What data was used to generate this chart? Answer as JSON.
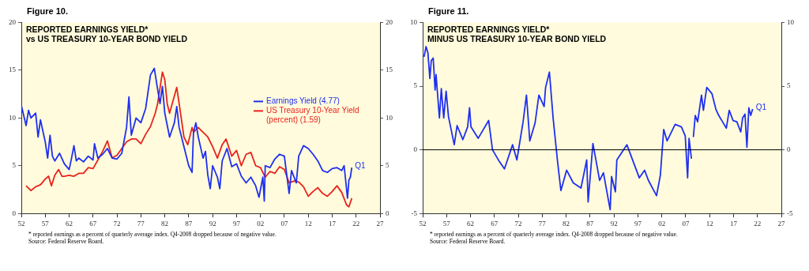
{
  "chart_data": [
    {
      "type": "line",
      "subtitle": "Figure 10.",
      "title": "REPORTED EARNINGS YIELD*\nvs US TREASURY 10-YEAR BOND YIELD",
      "xlim": [
        1952,
        2027
      ],
      "xticks": [
        {
          "value": 1952,
          "label": "52"
        },
        {
          "value": 1957,
          "label": "57"
        },
        {
          "value": 1962,
          "label": "62"
        },
        {
          "value": 1967,
          "label": "67"
        },
        {
          "value": 1972,
          "label": "72"
        },
        {
          "value": 1977,
          "label": "77"
        },
        {
          "value": 1982,
          "label": "82"
        },
        {
          "value": 1987,
          "label": "87"
        },
        {
          "value": 1992,
          "label": "92"
        },
        {
          "value": 1997,
          "label": "97"
        },
        {
          "value": 2002,
          "label": "02"
        },
        {
          "value": 2007,
          "label": "07"
        },
        {
          "value": 2012,
          "label": "12"
        },
        {
          "value": 2017,
          "label": "17"
        },
        {
          "value": 2022,
          "label": "22"
        },
        {
          "value": 2027,
          "label": "27"
        }
      ],
      "ylim": [
        0,
        20
      ],
      "yticks": [
        0,
        5,
        10,
        15,
        20
      ],
      "y2lim": [
        0,
        20
      ],
      "y2ticks": [
        0,
        5,
        10,
        15,
        20
      ],
      "legend": "right",
      "series": [
        {
          "name": "Earnings Yield (4.77)",
          "color": "#1f2ff0",
          "x": [
            1952,
            1953,
            1953.5,
            1954,
            1955,
            1955.5,
            1956,
            1957,
            1957.5,
            1958,
            1958.5,
            1959,
            1960,
            1961,
            1962,
            1962.5,
            1963,
            1963.5,
            1964,
            1965,
            1966,
            1967,
            1967.3,
            1968,
            1969,
            1970,
            1971,
            1972,
            1973,
            1974,
            1974.5,
            1975,
            1976,
            1977,
            1978,
            1979,
            1979.8,
            1980.5,
            1981,
            1981.5,
            1982,
            1983,
            1984,
            1984.5,
            1985,
            1986,
            1987,
            1987.7,
            1988,
            1988.5,
            1989,
            1990,
            1990.5,
            1991,
            1991.5,
            1992,
            1993,
            1993.5,
            1994,
            1995,
            1996,
            1997,
            1998,
            1999,
            2000,
            2001,
            2001.7,
            2002,
            2002.5,
            2002.8,
            2003,
            2004,
            2005,
            2006,
            2007,
            2008,
            2008.5,
            2009.5,
            2010,
            2011,
            2012,
            2013,
            2014,
            2015,
            2016,
            2017,
            2018,
            2019,
            2019.5,
            2020.2,
            2020.5,
            2020.8,
            2021.1
          ],
          "values": [
            11.3,
            9.2,
            10.8,
            10,
            10.5,
            8,
            9.8,
            7.5,
            5.8,
            8.2,
            6,
            5.5,
            6.3,
            5.2,
            4.6,
            5.8,
            7.1,
            5.5,
            5.8,
            5.4,
            6,
            5.6,
            7.3,
            5.8,
            6.2,
            6.8,
            5.8,
            5.7,
            6.3,
            9,
            12.2,
            8.2,
            10,
            9.5,
            11,
            14.5,
            15.2,
            13,
            11.5,
            13.3,
            10.5,
            8,
            9.5,
            11.2,
            9,
            7,
            5,
            4.3,
            8.5,
            9.5,
            8,
            5.8,
            6.5,
            4,
            2.6,
            5,
            3.8,
            2.6,
            5.5,
            6.8,
            4.9,
            5.2,
            3.9,
            3.2,
            3.8,
            2.9,
            1.7,
            2.5,
            3.8,
            1.3,
            5,
            4.8,
            5.7,
            6.2,
            6,
            2.1,
            4.5,
            3.2,
            6,
            7.1,
            6.8,
            6.2,
            5.5,
            4.5,
            4.3,
            4.7,
            4.8,
            4.5,
            5,
            1.6,
            3.5,
            3.8,
            4.8
          ]
        },
        {
          "name": "US Treasury 10-Year Yield (percent) (1.59)",
          "color": "#e8231e",
          "x": [
            1953,
            1954,
            1955,
            1956,
            1957,
            1957.7,
            1958.3,
            1959,
            1959.8,
            1960.5,
            1961,
            1962,
            1963,
            1964,
            1965,
            1966,
            1967,
            1968,
            1969,
            1970,
            1971,
            1972,
            1973,
            1974,
            1975,
            1976,
            1977,
            1978,
            1979,
            1980,
            1980.5,
            1981.5,
            1982,
            1982.5,
            1983,
            1984.5,
            1985,
            1986,
            1986.8,
            1987.7,
            1988,
            1989,
            1990,
            1991,
            1992,
            1993,
            1994,
            1994.8,
            1996,
            1997,
            1998,
            1999,
            2000,
            2001,
            2002,
            2003,
            2004,
            2005,
            2006,
            2007,
            2008,
            2009,
            2010,
            2011,
            2012,
            2013,
            2014,
            2015,
            2016,
            2017,
            2018,
            2019,
            2020,
            2020.5,
            2021.1
          ],
          "values": [
            2.9,
            2.4,
            2.8,
            3,
            3.6,
            3.9,
            2.9,
            4,
            4.6,
            3.9,
            3.9,
            4,
            3.9,
            4.2,
            4.2,
            4.8,
            4.7,
            5.6,
            6.5,
            7.6,
            5.8,
            6.1,
            6.8,
            7.5,
            7.8,
            7.8,
            7.3,
            8.3,
            9.1,
            10.5,
            11.5,
            14.8,
            14,
            11.5,
            10.5,
            13.2,
            11.5,
            8,
            7.2,
            9,
            8.5,
            9,
            8.5,
            8,
            7,
            5.8,
            7.2,
            7.8,
            6,
            6.6,
            5,
            6.2,
            6.4,
            5,
            4.8,
            3.8,
            4.4,
            4.2,
            4.9,
            4.6,
            3.2,
            3.4,
            3.3,
            2.8,
            1.8,
            2.3,
            2.7,
            2.1,
            1.8,
            2.3,
            2.9,
            2.2,
            0.9,
            0.7,
            1.6
          ]
        }
      ],
      "annotations": [
        {
          "text": "Q1",
          "x": 2021.1,
          "y": 4.8
        },
        "* reported earnings as a percent of quarterly average index. Q4-2008 dropped because of negative value.",
        "Source: Federal Reserve Board."
      ]
    },
    {
      "type": "line",
      "subtitle": "Figure 11.",
      "title": "REPORTED EARNINGS YIELD*\nMINUS US TREASURY 10-YEAR BOND YIELD",
      "xlim": [
        1952,
        2027
      ],
      "xticks": [
        {
          "value": 1952,
          "label": "52"
        },
        {
          "value": 1957,
          "label": "57"
        },
        {
          "value": 1962,
          "label": "62"
        },
        {
          "value": 1967,
          "label": "67"
        },
        {
          "value": 1972,
          "label": "72"
        },
        {
          "value": 1977,
          "label": "77"
        },
        {
          "value": 1982,
          "label": "82"
        },
        {
          "value": 1987,
          "label": "87"
        },
        {
          "value": 1992,
          "label": "92"
        },
        {
          "value": 1997,
          "label": "97"
        },
        {
          "value": 2002,
          "label": "02"
        },
        {
          "value": 2007,
          "label": "07"
        },
        {
          "value": 2012,
          "label": "12"
        },
        {
          "value": 2017,
          "label": "17"
        },
        {
          "value": 2022,
          "label": "22"
        },
        {
          "value": 2027,
          "label": "27"
        }
      ],
      "ylim": [
        -5,
        10
      ],
      "yticks": [
        -5,
        0,
        5,
        10
      ],
      "y2lim": [
        -5,
        10
      ],
      "y2ticks": [
        -5,
        0,
        5,
        10
      ],
      "ref_lines": [
        {
          "axis": "y",
          "value": 0,
          "color": "#000000"
        }
      ],
      "series": [
        {
          "color": "#1f2ff0",
          "x": [
            1952.3,
            1952.7,
            1953.1,
            1953.5,
            1953.8,
            1954.2,
            1954.6,
            1954.8,
            1955.5,
            1955.9,
            1956.4,
            1956.9,
            1957.4,
            1958.6,
            1959.2,
            1960.4,
            1961.4,
            1961.8,
            1962.1,
            1963.6,
            1965.8,
            1966.6,
            1968,
            1969.1,
            1970.8,
            1971.7,
            1973,
            1973.7,
            1974.4,
            1975.5,
            1976.3,
            1977.4,
            1977.7,
            1978.5,
            1979.3,
            1980.2,
            1980.9,
            1982.1,
            1983.5,
            1985.1,
            1986.3,
            1986.6,
            1987.6,
            1989,
            1989.8,
            1991.2,
            1991.5,
            1992.3,
            1992.6,
            1994.7,
            1996.2,
            1997.3,
            1998.4,
            1999.2,
            2000.9,
            2001.7,
            2002.4,
            2003.1,
            2004.8,
            2006.1,
            2006.9,
            2007.4,
            2007.7,
            2008.2,
            2008.4,
            2008.6,
            2009,
            2009.5,
            2010.3,
            2010.7,
            2011.4,
            2012.5,
            2013.3,
            2013.9,
            2014.7,
            2015.5,
            2016.1,
            2016.9,
            2017.7,
            2018.5,
            2018.9,
            2019.4,
            2019.8,
            2020.2,
            2020.6,
            2021
          ],
          "values": [
            7.3,
            8.1,
            7.6,
            5.6,
            7,
            7.2,
            4.7,
            5.9,
            2.5,
            4.8,
            2.5,
            4.6,
            2.6,
            0.4,
            1.9,
            0.8,
            1.8,
            3.3,
            1.8,
            0.9,
            2.3,
            0,
            -0.9,
            -1.5,
            0.4,
            -0.8,
            2.2,
            4.3,
            0.7,
            2.1,
            4.3,
            3.4,
            4.9,
            6.1,
            2.4,
            -0.9,
            -3.2,
            -1.6,
            -2.6,
            -3,
            -0.8,
            -4.1,
            0.5,
            -2.4,
            -1.8,
            -4.7,
            -2.1,
            -3.3,
            -0.8,
            0.4,
            -1.1,
            -2.2,
            -1.6,
            -2.4,
            -3.6,
            -2,
            1.6,
            0.7,
            2,
            1.8,
            1.1,
            -2.2,
            0.9,
            -0.7,
            null,
            1,
            2.7,
            2.2,
            4.3,
            3.1,
            4.9,
            4.4,
            3.2,
            2.7,
            2.2,
            1.7,
            3.1,
            2.3,
            2.2,
            1.4,
            2.5,
            2.8,
            0.2,
            3.3,
            2.7,
            3.2
          ]
        }
      ],
      "annotations": [
        {
          "text": "Q1",
          "x": 2021,
          "y": 3.2
        },
        "* reported earnings as a percent of quarterly average index. Q4-2008 dropped because of negative value.",
        "Source: Federal Reserve Board."
      ]
    }
  ]
}
